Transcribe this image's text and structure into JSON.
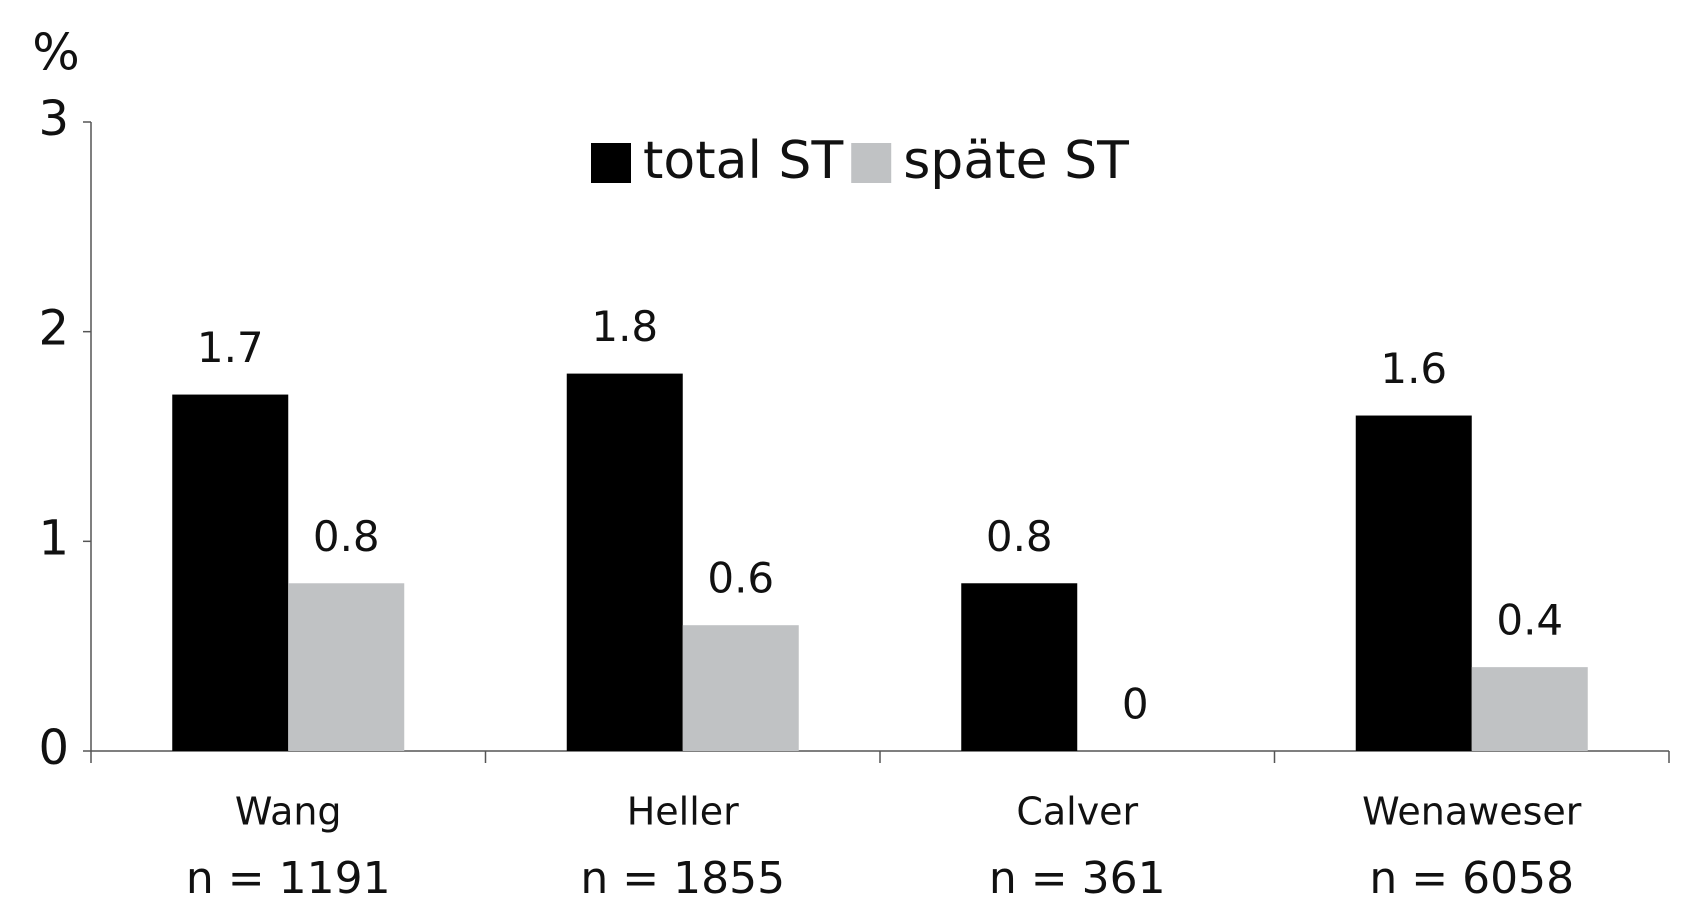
{
  "chart_data": {
    "type": "bar",
    "y_label": "%",
    "categories": [
      "Wang",
      "Heller",
      "Calver",
      "Wenaweser"
    ],
    "n_labels": [
      "n = 1191",
      "n = 1855",
      "n = 361",
      "n = 6058"
    ],
    "series": [
      {
        "name": "total ST",
        "color": "#000000",
        "values": [
          1.7,
          1.8,
          0.8,
          1.6
        ]
      },
      {
        "name": "späte ST",
        "color": "#c0c2c4",
        "values": [
          0.8,
          0.6,
          0,
          0.4
        ]
      }
    ],
    "ylim": [
      0,
      3
    ],
    "yticks": [
      0,
      1,
      2,
      3
    ],
    "grid": false,
    "legend": "top"
  }
}
